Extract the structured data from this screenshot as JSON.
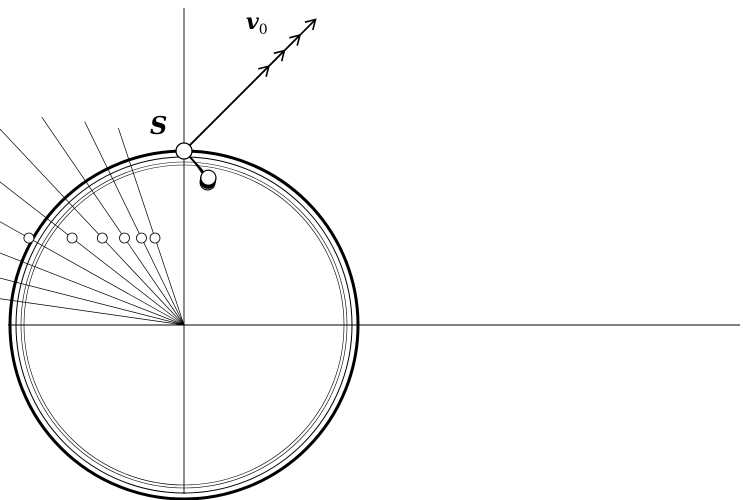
{
  "labels": {
    "launch_point": "S",
    "velocity_symbol": "v",
    "velocity_subscript": "0"
  },
  "colors": {
    "ink": "#000000",
    "background": "#ffffff",
    "marker_fill": "#ffffff"
  },
  "trajectory_count": 9,
  "velocity_arrow_count": 4
}
